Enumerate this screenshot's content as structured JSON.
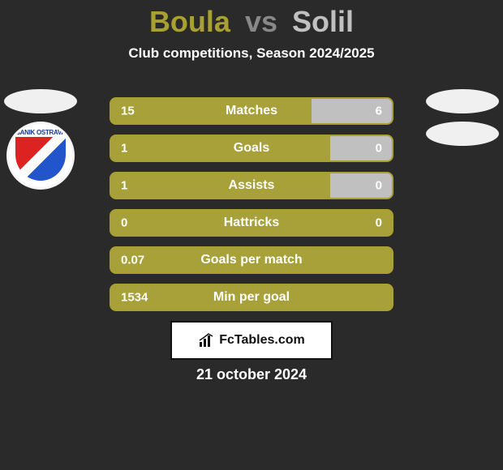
{
  "title": {
    "player1": "Boula",
    "vs": "vs",
    "player2": "Solil"
  },
  "subtitle": "Club competitions, Season 2024/2025",
  "colors": {
    "p1": "#a8a030",
    "p2": "#c0c0c0",
    "vs": "#888888",
    "bar_left": "#a8a038",
    "bar_right": "#c0c0c0",
    "border": "#a8a030",
    "background": "#2a2a2a",
    "text": "#ffffff"
  },
  "left_crest": {
    "top_text": "BANIK OSTRAVA"
  },
  "stats": [
    {
      "label": "Matches",
      "left_val": "15",
      "right_val": "6",
      "left_pct": 71.4,
      "right_pct": 28.6
    },
    {
      "label": "Goals",
      "left_val": "1",
      "right_val": "0",
      "left_pct": 78,
      "right_pct": 22
    },
    {
      "label": "Assists",
      "left_val": "1",
      "right_val": "0",
      "left_pct": 78,
      "right_pct": 22
    },
    {
      "label": "Hattricks",
      "left_val": "0",
      "right_val": "0",
      "left_pct": 100,
      "right_pct": 0
    },
    {
      "label": "Goals per match",
      "left_val": "0.07",
      "right_val": "",
      "left_pct": 100,
      "right_pct": 0
    },
    {
      "label": "Min per goal",
      "left_val": "1534",
      "right_val": "",
      "left_pct": 100,
      "right_pct": 0
    }
  ],
  "branding": "FcTables.com",
  "date": "21 october 2024"
}
